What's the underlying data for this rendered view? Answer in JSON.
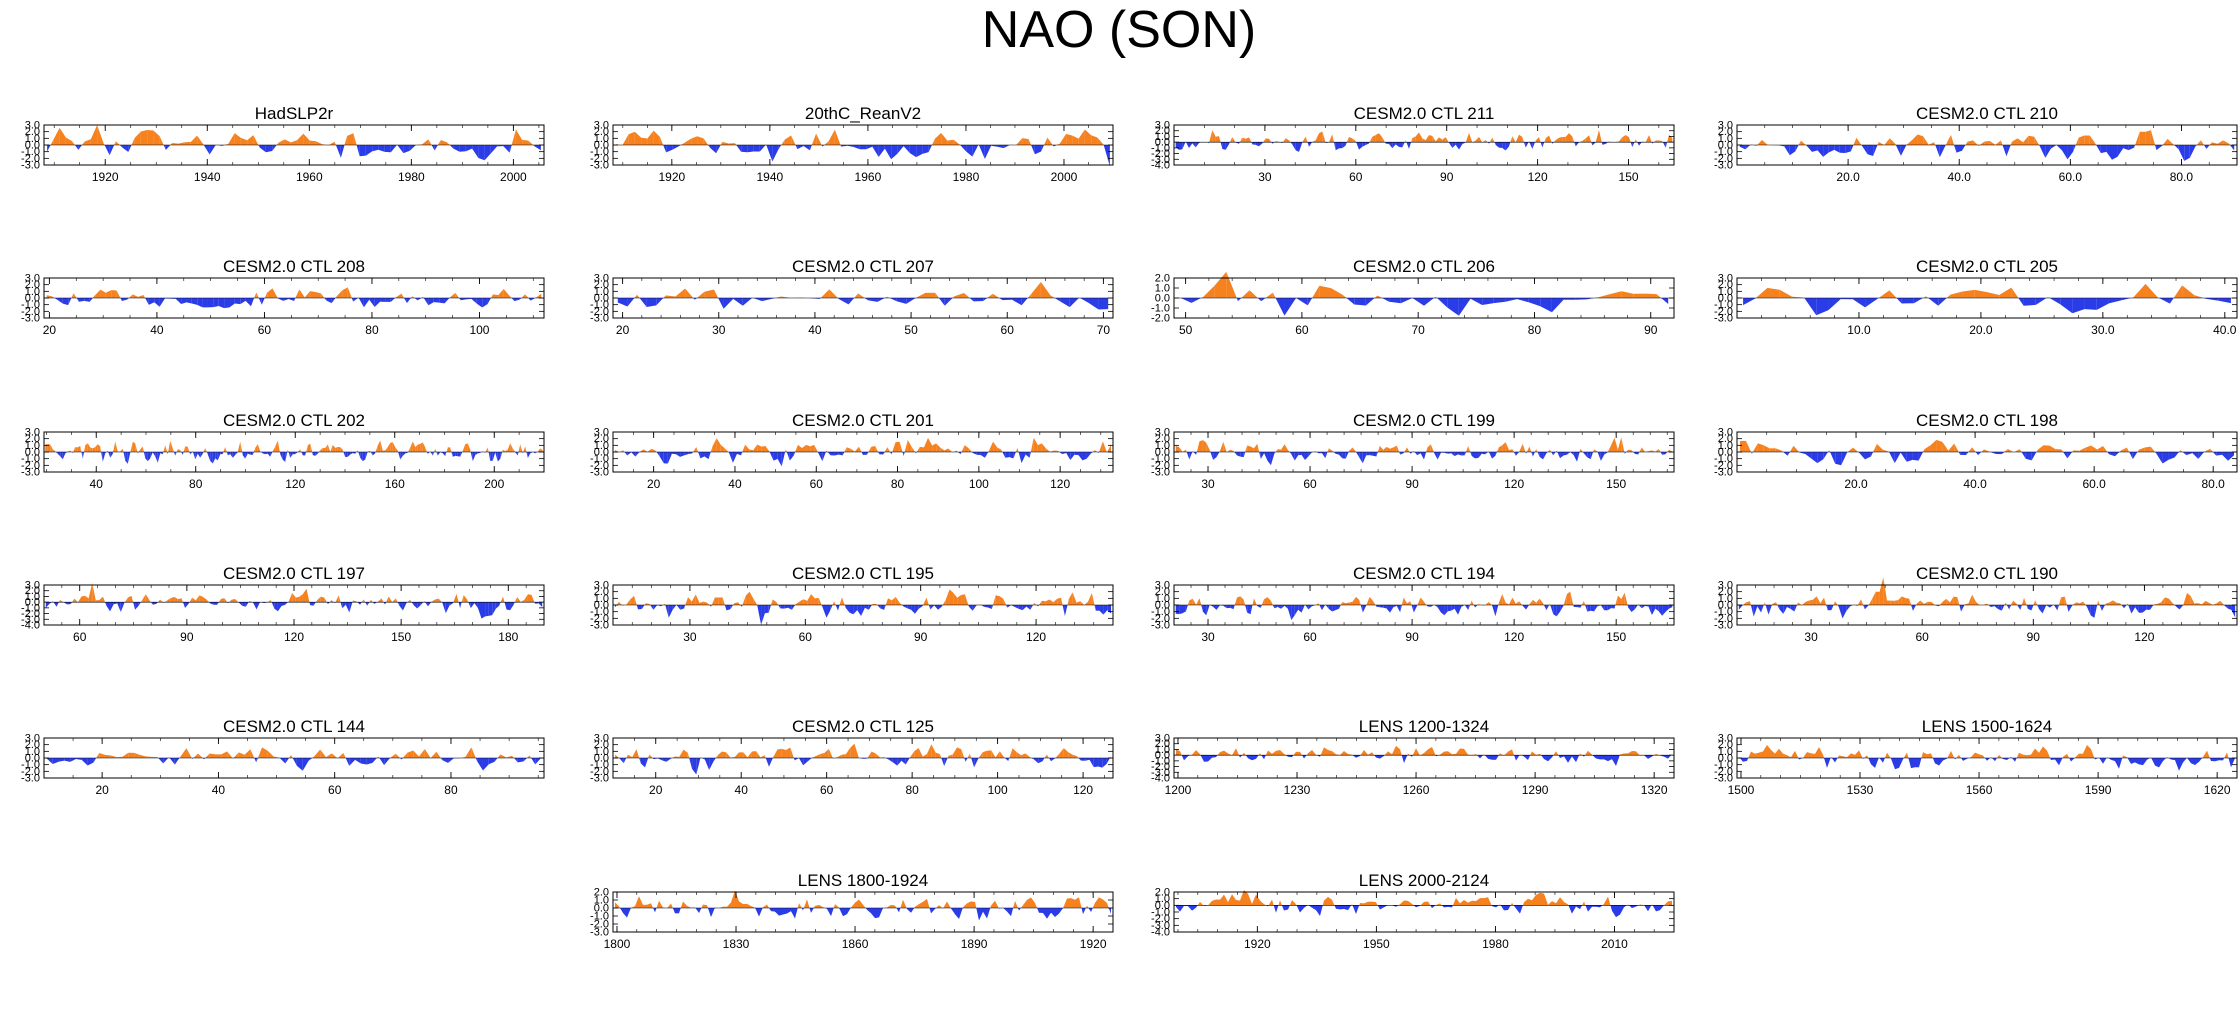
{
  "figure": {
    "title": "NAO (SON)"
  },
  "colors": {
    "positive": "#f5811f",
    "negative": "#2a3ce8",
    "axis": "#000000"
  },
  "chart_data": [
    {
      "type": "area",
      "title": "HadSLP2r",
      "xlim": [
        1908,
        2006
      ],
      "ylim": [
        -3.0,
        3.0
      ],
      "xticks": [
        1920,
        1940,
        1960,
        1980,
        2000
      ],
      "xtick_labels": [
        "1920",
        "1940",
        "1960",
        "1980",
        "2000"
      ],
      "yticks": [
        3.0,
        2.0,
        1.0,
        0.0,
        -1.0,
        -2.0,
        -3.0
      ],
      "ytick_labels": [
        "3.0",
        "2.0",
        "1.0",
        "0.0",
        "-1.0",
        "-2.0",
        "-3.0"
      ],
      "n": 80,
      "amp": 1.5,
      "seed": 11,
      "values": []
    },
    {
      "type": "area",
      "title": "20thC_ReanV2",
      "xlim": [
        1908,
        2010
      ],
      "ylim": [
        -3.0,
        3.0
      ],
      "xticks": [
        1920,
        1940,
        1960,
        1980,
        2000
      ],
      "xtick_labels": [
        "1920",
        "1940",
        "1960",
        "1980",
        "2000"
      ],
      "yticks": [
        3.0,
        2.0,
        1.0,
        0.0,
        -1.0,
        -2.0,
        -3.0
      ],
      "ytick_labels": [
        "3.0",
        "2.0",
        "1.0",
        "0.0",
        "-1.0",
        "-2.0",
        "-3.0"
      ],
      "n": 80,
      "amp": 1.5,
      "seed": 12,
      "values": []
    },
    {
      "type": "area",
      "title": "CESM2.0 CTL 211",
      "xlim": [
        0,
        165
      ],
      "ylim": [
        -4.0,
        3.0
      ],
      "xticks": [
        30,
        60,
        90,
        120,
        150
      ],
      "xtick_labels": [
        "30",
        "60",
        "90",
        "120",
        "150"
      ],
      "yticks": [
        3.0,
        2.0,
        1.0,
        0.0,
        -1.0,
        -2.0,
        -3.0,
        -4.0
      ],
      "ytick_labels": [
        "3.0",
        "2.0",
        "1.0",
        "0.0",
        "-1.0",
        "-2.0",
        "-3.0",
        "-4.0"
      ],
      "n": 150,
      "amp": 1.2,
      "seed": 13,
      "values": []
    },
    {
      "type": "area",
      "title": "CESM2.0 CTL 210",
      "xlim": [
        0,
        90
      ],
      "ylim": [
        -3.0,
        3.0
      ],
      "xticks": [
        20,
        40,
        60,
        80
      ],
      "xtick_labels": [
        "20.0",
        "40.0",
        "60.0",
        "80.0"
      ],
      "yticks": [
        3.0,
        2.0,
        1.0,
        0.0,
        -1.0,
        -2.0,
        -3.0
      ],
      "ytick_labels": [
        "3.0",
        "2.0",
        "1.0",
        "0.0",
        "-1.0",
        "-2.0",
        "-3.0"
      ],
      "n": 90,
      "amp": 1.4,
      "seed": 14,
      "values": []
    },
    {
      "type": "area",
      "title": "CESM2.0 CTL 208",
      "xlim": [
        19,
        112
      ],
      "ylim": [
        -3.0,
        3.0
      ],
      "xticks": [
        20,
        40,
        60,
        80,
        100
      ],
      "xtick_labels": [
        "20",
        "40",
        "60",
        "80",
        "100"
      ],
      "yticks": [
        3.0,
        2.0,
        1.0,
        0.0,
        -1.0,
        -2.0,
        -3.0
      ],
      "ytick_labels": [
        "3.0",
        "2.0",
        "1.0",
        "0.0",
        "-1.0",
        "-2.0",
        "-3.0"
      ],
      "n": 93,
      "amp": 1.3,
      "seed": 15,
      "values": []
    },
    {
      "type": "area",
      "title": "CESM2.0 CTL 207",
      "xlim": [
        19,
        71
      ],
      "ylim": [
        -3.0,
        3.0
      ],
      "xticks": [
        20,
        30,
        40,
        50,
        60,
        70
      ],
      "xtick_labels": [
        "20",
        "30",
        "40",
        "50",
        "60",
        "70"
      ],
      "yticks": [
        3.0,
        2.0,
        1.0,
        0.0,
        -1.0,
        -2.0,
        -3.0
      ],
      "ytick_labels": [
        "3.0",
        "2.0",
        "1.0",
        "0.0",
        "-1.0",
        "-2.0",
        "-3.0"
      ],
      "n": 52,
      "amp": 1.4,
      "seed": 16,
      "values": []
    },
    {
      "type": "area",
      "title": "CESM2.0 CTL 206",
      "xlim": [
        49,
        92
      ],
      "ylim": [
        -2.0,
        2.0
      ],
      "xticks": [
        50,
        60,
        70,
        80,
        90
      ],
      "xtick_labels": [
        "50",
        "60",
        "70",
        "80",
        "90"
      ],
      "yticks": [
        2.0,
        1.0,
        0.0,
        -1.0,
        -2.0
      ],
      "ytick_labels": [
        "2.0",
        "1.0",
        "0.0",
        "-1.0",
        "-2.0"
      ],
      "n": 43,
      "amp": 1.2,
      "seed": 17,
      "values": []
    },
    {
      "type": "area",
      "title": "CESM2.0 CTL 205",
      "xlim": [
        0,
        41
      ],
      "ylim": [
        -3.0,
        3.0
      ],
      "xticks": [
        10,
        20,
        30,
        40
      ],
      "xtick_labels": [
        "10.0",
        "20.0",
        "30.0",
        "40.0"
      ],
      "yticks": [
        3.0,
        2.0,
        1.0,
        0.0,
        -1.0,
        -2.0,
        -3.0
      ],
      "ytick_labels": [
        "3.0",
        "2.0",
        "1.0",
        "0.0",
        "-1.0",
        "-2.0",
        "-3.0"
      ],
      "n": 41,
      "amp": 1.4,
      "seed": 18,
      "values": []
    },
    {
      "type": "area",
      "title": "CESM2.0 CTL 202",
      "xlim": [
        19,
        220
      ],
      "ylim": [
        -3.0,
        3.0
      ],
      "xticks": [
        40,
        80,
        120,
        160,
        200
      ],
      "xtick_labels": [
        "40",
        "80",
        "120",
        "160",
        "200"
      ],
      "yticks": [
        3.0,
        2.0,
        1.0,
        0.0,
        -1.0,
        -2.0,
        -3.0
      ],
      "ytick_labels": [
        "3.0",
        "2.0",
        "1.0",
        "0.0",
        "-1.0",
        "-2.0",
        "-3.0"
      ],
      "n": 200,
      "amp": 1.1,
      "seed": 19,
      "values": []
    },
    {
      "type": "area",
      "title": "CESM2.0 CTL 201",
      "xlim": [
        10,
        133
      ],
      "ylim": [
        -3.0,
        3.0
      ],
      "xticks": [
        20,
        40,
        60,
        80,
        100,
        120
      ],
      "xtick_labels": [
        "20",
        "40",
        "60",
        "80",
        "100",
        "120"
      ],
      "yticks": [
        3.0,
        2.0,
        1.0,
        0.0,
        -1.0,
        -2.0,
        -3.0
      ],
      "ytick_labels": [
        "3.0",
        "2.0",
        "1.0",
        "0.0",
        "-1.0",
        "-2.0",
        "-3.0"
      ],
      "n": 123,
      "amp": 1.2,
      "seed": 20,
      "values": []
    },
    {
      "type": "area",
      "title": "CESM2.0 CTL 199",
      "xlim": [
        20,
        167
      ],
      "ylim": [
        -3.0,
        3.0
      ],
      "xticks": [
        30,
        60,
        90,
        120,
        150
      ],
      "xtick_labels": [
        "30",
        "60",
        "90",
        "120",
        "150"
      ],
      "yticks": [
        3.0,
        2.0,
        1.0,
        0.0,
        -1.0,
        -2.0,
        -3.0
      ],
      "ytick_labels": [
        "3.0",
        "2.0",
        "1.0",
        "0.0",
        "-1.0",
        "-2.0",
        "-3.0"
      ],
      "n": 147,
      "amp": 1.2,
      "seed": 21,
      "values": []
    },
    {
      "type": "area",
      "title": "CESM2.0 CTL 198",
      "xlim": [
        0,
        84
      ],
      "ylim": [
        -3.0,
        3.0
      ],
      "xticks": [
        20,
        40,
        60,
        80
      ],
      "xtick_labels": [
        "20.0",
        "40.0",
        "60.0",
        "80.0"
      ],
      "yticks": [
        3.0,
        2.0,
        1.0,
        0.0,
        -1.0,
        -2.0,
        -3.0
      ],
      "ytick_labels": [
        "3.0",
        "2.0",
        "1.0",
        "0.0",
        "-1.0",
        "-2.0",
        "-3.0"
      ],
      "n": 84,
      "amp": 1.3,
      "seed": 22,
      "values": []
    },
    {
      "type": "area",
      "title": "CESM2.0 CTL 197",
      "xlim": [
        50,
        190
      ],
      "ylim": [
        -4.0,
        3.0
      ],
      "xticks": [
        60,
        90,
        120,
        150,
        180
      ],
      "xtick_labels": [
        "60",
        "90",
        "120",
        "150",
        "180"
      ],
      "yticks": [
        3.0,
        2.0,
        1.0,
        0.0,
        -1.0,
        -2.0,
        -3.0,
        -4.0
      ],
      "ytick_labels": [
        "3.0",
        "2.0",
        "1.0",
        "0.0",
        "-1.0",
        "-2.0",
        "-3.0",
        "-4.0"
      ],
      "n": 140,
      "amp": 1.2,
      "seed": 23,
      "values": []
    },
    {
      "type": "area",
      "title": "CESM2.0 CTL 195",
      "xlim": [
        10,
        140
      ],
      "ylim": [
        -3.0,
        3.0
      ],
      "xticks": [
        30,
        60,
        90,
        120
      ],
      "xtick_labels": [
        "30",
        "60",
        "90",
        "120"
      ],
      "yticks": [
        3.0,
        2.0,
        1.0,
        0.0,
        -1.0,
        -2.0,
        -3.0
      ],
      "ytick_labels": [
        "3.0",
        "2.0",
        "1.0",
        "0.0",
        "-1.0",
        "-2.0",
        "-3.0"
      ],
      "n": 130,
      "amp": 1.2,
      "seed": 24,
      "values": []
    },
    {
      "type": "area",
      "title": "CESM2.0 CTL 194",
      "xlim": [
        20,
        167
      ],
      "ylim": [
        -3.0,
        3.0
      ],
      "xticks": [
        30,
        60,
        90,
        120,
        150
      ],
      "xtick_labels": [
        "30",
        "60",
        "90",
        "120",
        "150"
      ],
      "yticks": [
        3.0,
        2.0,
        1.0,
        0.0,
        -1.0,
        -2.0,
        -3.0
      ],
      "ytick_labels": [
        "3.0",
        "2.0",
        "1.0",
        "0.0",
        "-1.0",
        "-2.0",
        "-3.0"
      ],
      "n": 147,
      "amp": 1.2,
      "seed": 25,
      "values": []
    },
    {
      "type": "area",
      "title": "CESM2.0 CTL 190",
      "xlim": [
        10,
        145
      ],
      "ylim": [
        -3.0,
        3.0
      ],
      "xticks": [
        30,
        60,
        90,
        120
      ],
      "xtick_labels": [
        "30",
        "60",
        "90",
        "120"
      ],
      "yticks": [
        3.0,
        2.0,
        1.0,
        0.0,
        -1.0,
        -2.0,
        -3.0
      ],
      "ytick_labels": [
        "3.0",
        "2.0",
        "1.0",
        "0.0",
        "-1.0",
        "-2.0",
        "-3.0"
      ],
      "n": 135,
      "amp": 1.2,
      "seed": 26,
      "values": []
    },
    {
      "type": "area",
      "title": "CESM2.0 CTL 144",
      "xlim": [
        10,
        96
      ],
      "ylim": [
        -3.0,
        3.0
      ],
      "xticks": [
        20,
        40,
        60,
        80
      ],
      "xtick_labels": [
        "20",
        "40",
        "60",
        "80"
      ],
      "yticks": [
        3.0,
        2.0,
        1.0,
        0.0,
        -1.0,
        -2.0,
        -3.0
      ],
      "ytick_labels": [
        "3.0",
        "2.0",
        "1.0",
        "0.0",
        "-1.0",
        "-2.0",
        "-3.0"
      ],
      "n": 86,
      "amp": 1.3,
      "seed": 27,
      "values": []
    },
    {
      "type": "area",
      "title": "CESM2.0 CTL 125",
      "xlim": [
        10,
        127
      ],
      "ylim": [
        -3.0,
        3.0
      ],
      "xticks": [
        20,
        40,
        60,
        80,
        100,
        120
      ],
      "xtick_labels": [
        "20",
        "40",
        "60",
        "80",
        "100",
        "120"
      ],
      "yticks": [
        3.0,
        2.0,
        1.0,
        0.0,
        -1.0,
        -2.0,
        -3.0
      ],
      "ytick_labels": [
        "3.0",
        "2.0",
        "1.0",
        "0.0",
        "-1.0",
        "-2.0",
        "-3.0"
      ],
      "n": 117,
      "amp": 1.2,
      "seed": 28,
      "values": []
    },
    {
      "type": "area",
      "title": "LENS 1200-1324",
      "xlim": [
        1199,
        1325
      ],
      "ylim": [
        -4.0,
        3.0
      ],
      "xticks": [
        1200,
        1230,
        1260,
        1290,
        1320
      ],
      "xtick_labels": [
        "1200",
        "1230",
        "1260",
        "1290",
        "1320"
      ],
      "yticks": [
        3.0,
        2.0,
        1.0,
        0.0,
        -1.0,
        -2.0,
        -3.0,
        -4.0
      ],
      "ytick_labels": [
        "3.0",
        "2.0",
        "1.0",
        "0.0",
        "-1.0",
        "-2.0",
        "-3.0",
        "-4.0"
      ],
      "n": 125,
      "amp": 1.1,
      "seed": 29,
      "values": []
    },
    {
      "type": "area",
      "title": "LENS 1500-1624",
      "xlim": [
        1499,
        1625
      ],
      "ylim": [
        -3.0,
        3.0
      ],
      "xticks": [
        1500,
        1530,
        1560,
        1590,
        1620
      ],
      "xtick_labels": [
        "1500",
        "1530",
        "1560",
        "1590",
        "1620"
      ],
      "yticks": [
        3.0,
        2.0,
        1.0,
        0.0,
        -1.0,
        -2.0,
        -3.0
      ],
      "ytick_labels": [
        "3.0",
        "2.0",
        "1.0",
        "0.0",
        "-1.0",
        "-2.0",
        "-3.0"
      ],
      "n": 125,
      "amp": 1.2,
      "seed": 30,
      "values": []
    },
    {
      "type": "area",
      "title": "LENS 1800-1924",
      "xlim": [
        1799,
        1925
      ],
      "ylim": [
        -3.0,
        2.0
      ],
      "xticks": [
        1800,
        1830,
        1860,
        1890,
        1920
      ],
      "xtick_labels": [
        "1800",
        "1830",
        "1860",
        "1890",
        "1920"
      ],
      "yticks": [
        2.0,
        1.0,
        0.0,
        -1.0,
        -2.0,
        -3.0
      ],
      "ytick_labels": [
        "2.0",
        "1.0",
        "0.0",
        "-1.0",
        "-2.0",
        "-3.0"
      ],
      "n": 125,
      "amp": 1.1,
      "seed": 31,
      "values": []
    },
    {
      "type": "area",
      "title": "LENS 2000-2124",
      "xlim": [
        1899,
        2025
      ],
      "ylim": [
        -4.0,
        2.0
      ],
      "xticks": [
        1920,
        1950,
        1980,
        2010
      ],
      "xtick_labels": [
        "1920",
        "1950",
        "1980",
        "2010"
      ],
      "yticks": [
        2.0,
        1.0,
        0.0,
        -1.0,
        -2.0,
        -3.0,
        -4.0
      ],
      "ytick_labels": [
        "2.0",
        "1.0",
        "0.0",
        "-1.0",
        "-2.0",
        "-3.0",
        "-4.0"
      ],
      "n": 125,
      "amp": 1.0,
      "seed": 32,
      "values": []
    }
  ]
}
